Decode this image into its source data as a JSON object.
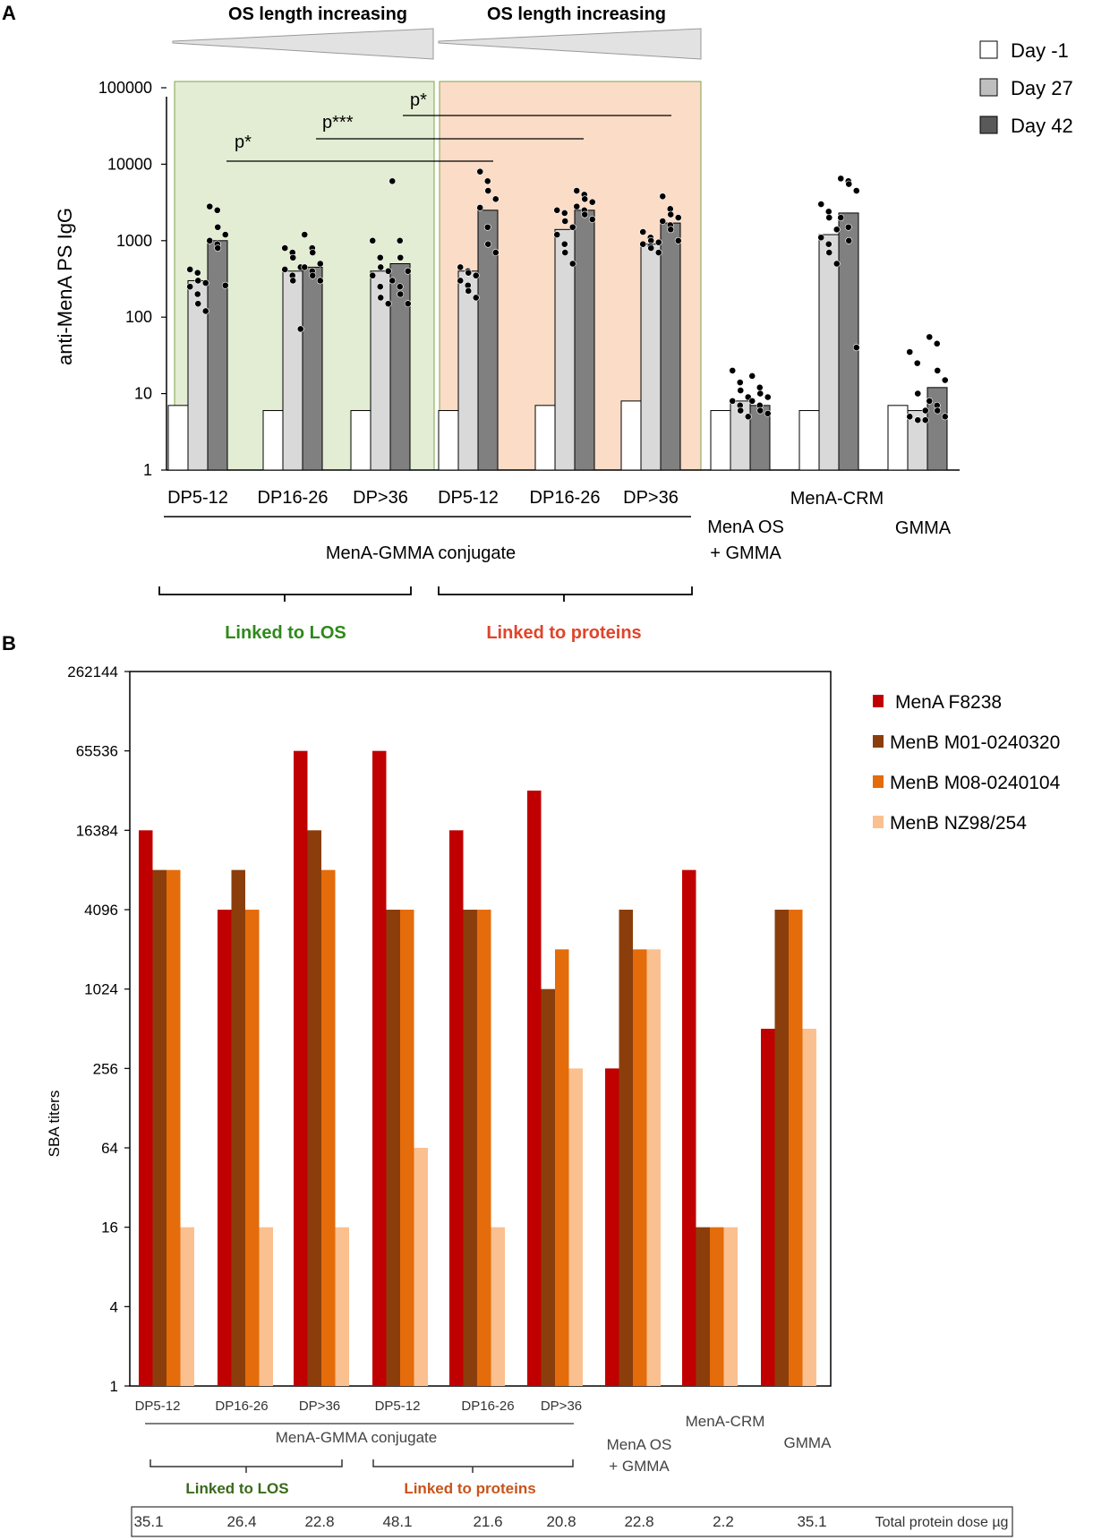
{
  "colors": {
    "los_bg": "#e2edd3",
    "los_border": "#7fa34e",
    "prot_bg": "#fbdcc6",
    "prot_border": "#7fa34e",
    "day_m1": "#ffffff",
    "day27": "#d3d3d3",
    "day42": "#7f7f7f",
    "menA": "#c00000",
    "menB1": "#8b3e0b",
    "menB2": "#e46c0a",
    "menB3": "#fac090",
    "lbl_los": "#2d8a1a",
    "lbl_prot": "#e0442a",
    "lbl_los_b": "#3a6a1a",
    "lbl_prot_b": "#c8541a"
  },
  "panel_a": {
    "letter": "A",
    "gradient_label_1": "OS length increasing",
    "gradient_label_2": "OS length increasing",
    "ylabel": "anti-MenA PS IgG",
    "yticks": [
      "100000",
      "10000",
      "1000",
      "100",
      "10",
      "1"
    ],
    "legend": [
      "Day -1",
      "Day 27",
      "Day 42"
    ],
    "groups": [
      "DP5-12",
      "DP16-26",
      "DP>36",
      "DP5-12",
      "DP16-26",
      "DP>36"
    ],
    "group_menaos": [
      "MenA OS",
      "+ GMMA"
    ],
    "group_crm": "MenA-CRM",
    "group_gmma": "GMMA",
    "conjugate_label": "MenA-GMMA  conjugate",
    "los_label": "Linked  to LOS",
    "prot_label": "Linked  to proteins",
    "sig": [
      "p*",
      "p***",
      "p*"
    ]
  },
  "chart_data": [
    {
      "type": "bar",
      "title": "",
      "ylabel": "anti-MenA PS IgG",
      "yscale": "log10",
      "ylim": [
        1,
        100000
      ],
      "categories": [
        "DP5-12 (LOS)",
        "DP16-26 (LOS)",
        "DP>36 (LOS)",
        "DP5-12 (proteins)",
        "DP16-26 (proteins)",
        "DP>36 (proteins)",
        "MenA OS + GMMA",
        "MenA-CRM",
        "GMMA"
      ],
      "series": [
        {
          "name": "Day -1",
          "values": [
            7,
            6,
            6,
            6,
            7,
            8,
            6,
            6,
            7
          ]
        },
        {
          "name": "Day 27",
          "values": [
            300,
            400,
            400,
            400,
            1400,
            900,
            8,
            1200,
            6
          ]
        },
        {
          "name": "Day 42",
          "values": [
            1000,
            450,
            500,
            2500,
            2500,
            1700,
            7,
            2300,
            12
          ]
        }
      ],
      "points": {
        "Day 27": [
          [
            420,
            380,
            300,
            280,
            250,
            200,
            150,
            120
          ],
          [
            800,
            700,
            600,
            450,
            420,
            350,
            300,
            70
          ],
          [
            1000,
            600,
            450,
            400,
            350,
            250,
            180,
            150
          ],
          [
            450,
            400,
            380,
            350,
            300,
            260,
            220,
            180
          ],
          [
            2500,
            2300,
            1800,
            1500,
            1200,
            900,
            700,
            500
          ],
          [
            1300,
            1100,
            1000,
            950,
            900,
            850,
            800,
            700
          ],
          [
            20,
            14,
            11,
            9,
            8,
            7,
            6,
            5
          ],
          [
            3000,
            2400,
            2000,
            1400,
            1100,
            900,
            700,
            500
          ],
          [
            35,
            25,
            10,
            6,
            5,
            4.5,
            4.5,
            4.5
          ]
        ],
        "Day 42": [
          [
            2800,
            2500,
            1500,
            1200,
            1000,
            900,
            800,
            260
          ],
          [
            1200,
            800,
            700,
            500,
            450,
            400,
            350,
            300
          ],
          [
            6000,
            1000,
            600,
            400,
            300,
            250,
            200,
            150
          ],
          [
            8000,
            6000,
            4500,
            3500,
            2700,
            1500,
            900,
            700
          ],
          [
            4500,
            4000,
            3500,
            3200,
            2800,
            2500,
            2200,
            1900
          ],
          [
            3800,
            2600,
            2200,
            2000,
            1800,
            1600,
            1400,
            1000
          ],
          [
            17,
            12,
            10,
            9,
            8,
            7,
            6,
            5.5
          ],
          [
            6500,
            6000,
            5500,
            4500,
            2000,
            1500,
            1000,
            40
          ],
          [
            55,
            45,
            20,
            15,
            8,
            7,
            6,
            5
          ]
        ]
      },
      "significance": [
        {
          "label": "p*",
          "from": "DP5-12 (LOS)",
          "to": "DP5-12 (proteins)"
        },
        {
          "label": "p***",
          "from": "DP16-26 (LOS)",
          "to": "DP16-26 (proteins)"
        },
        {
          "label": "p*",
          "from": "DP>36 (LOS)",
          "to": "DP>36 (proteins)"
        }
      ],
      "legend": [
        "Day -1",
        "Day 27",
        "Day 42"
      ],
      "legend_position": "top-right"
    },
    {
      "type": "bar",
      "title": "",
      "ylabel": "SBA titers",
      "yscale": "log2",
      "ylim": [
        1,
        262144
      ],
      "yticks": [
        1,
        4,
        16,
        64,
        256,
        1024,
        4096,
        16384,
        65536,
        262144
      ],
      "categories": [
        "DP5-12",
        "DP16-26",
        "DP>36",
        "DP5-12",
        "DP16-26",
        "DP>36",
        "MenA OS + GMMA",
        "MenA-CRM",
        "GMMA"
      ],
      "series": [
        {
          "name": "MenA F8238",
          "values": [
            16384,
            4096,
            65536,
            65536,
            16384,
            32768,
            256,
            8192,
            512
          ]
        },
        {
          "name": "MenB M01-0240320",
          "values": [
            8192,
            8192,
            16384,
            4096,
            4096,
            1024,
            4096,
            16,
            4096
          ]
        },
        {
          "name": "MenB M08-0240104",
          "values": [
            8192,
            4096,
            8192,
            4096,
            4096,
            2048,
            2048,
            16,
            4096
          ]
        },
        {
          "name": "MenB NZ98/254",
          "values": [
            16,
            16,
            16,
            64,
            16,
            256,
            2048,
            16,
            512
          ]
        }
      ],
      "legend": [
        "MenA F8238",
        "MenB M01-0240320",
        "MenB M08-0240104",
        "MenB NZ98/254"
      ],
      "legend_position": "right"
    }
  ],
  "panel_b": {
    "letter": "B",
    "ylabel": "SBA titers",
    "ytick_labels": [
      "1",
      "4",
      "16",
      "64",
      "256",
      "1024",
      "4096",
      "16384",
      "65536",
      "262144"
    ],
    "group_labels": [
      "DP5-12",
      "DP16-26",
      "DP>36",
      "DP5-12",
      "DP16-26",
      "DP>36"
    ],
    "group_menaos": [
      "MenA OS",
      "+ GMMA"
    ],
    "group_crm": "MenA-CRM",
    "group_gmma": "GMMA",
    "conjugate_label": "MenA-GMMA conjugate",
    "los_label": "Linked to LOS",
    "prot_label": "Linked to proteins",
    "dose_values": [
      "35.1",
      "26.4",
      "22.8",
      "48.1",
      "21.6",
      "20.8",
      "22.8",
      "2.2",
      "35.1"
    ],
    "dose_label": "Total protein dose µg"
  }
}
